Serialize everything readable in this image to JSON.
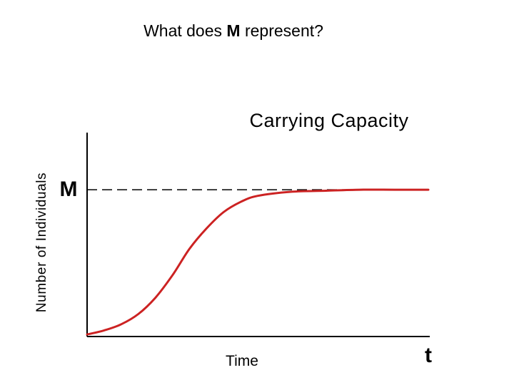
{
  "slide": {
    "question_prefix": "What does ",
    "question_bold": "M",
    "question_suffix": " represent?"
  },
  "chart_data": {
    "type": "line",
    "title": "Carrying Capacity",
    "xlabel": "Time",
    "ylabel": "Number of Individuals",
    "x_end_label": "t",
    "reference_line": {
      "label": "M",
      "y": 0.72,
      "style": "dashed"
    },
    "xlim": [
      0,
      1
    ],
    "ylim": [
      0,
      1
    ],
    "series": [
      {
        "color": "#cc2222",
        "points": [
          [
            0.0,
            0.01
          ],
          [
            0.05,
            0.03
          ],
          [
            0.1,
            0.06
          ],
          [
            0.15,
            0.11
          ],
          [
            0.2,
            0.19
          ],
          [
            0.25,
            0.3
          ],
          [
            0.3,
            0.43
          ],
          [
            0.35,
            0.53
          ],
          [
            0.4,
            0.61
          ],
          [
            0.45,
            0.66
          ],
          [
            0.5,
            0.69
          ],
          [
            0.6,
            0.71
          ],
          [
            0.7,
            0.715
          ],
          [
            0.8,
            0.72
          ],
          [
            0.9,
            0.72
          ],
          [
            1.0,
            0.72
          ]
        ]
      }
    ],
    "axis_color": "#000000",
    "dash_color": "#000000"
  }
}
